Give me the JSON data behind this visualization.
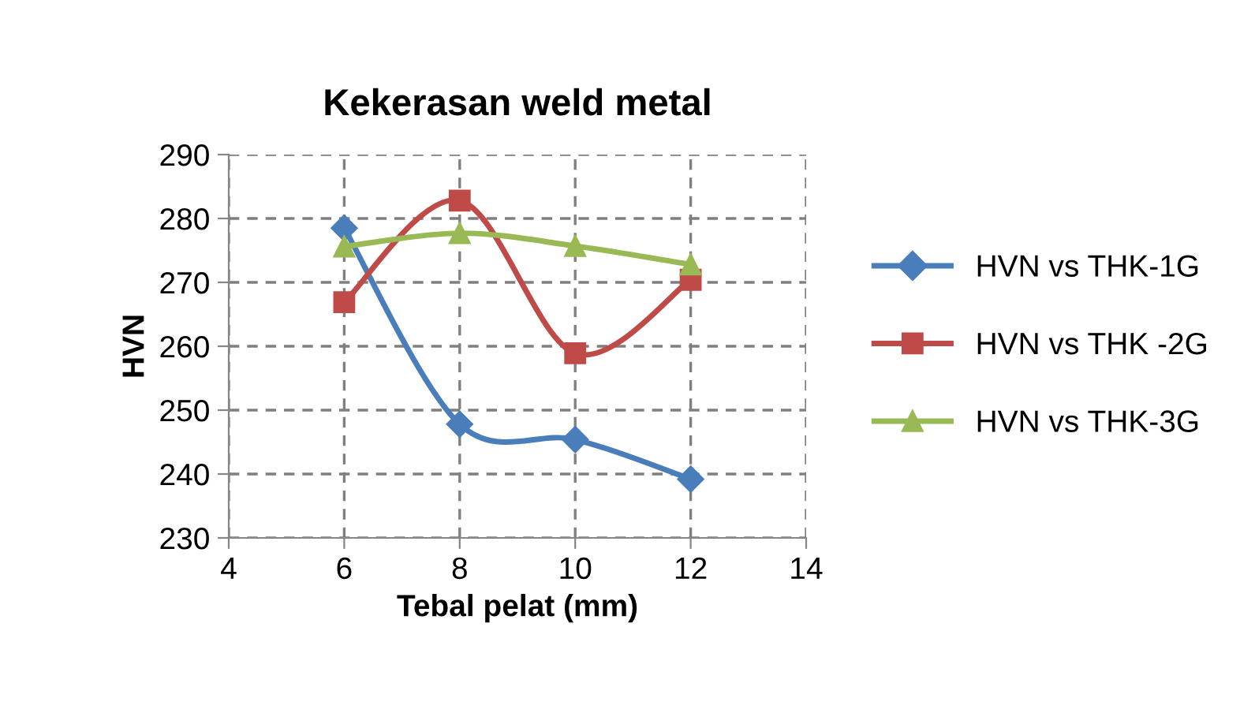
{
  "chart_data": {
    "type": "line",
    "title": "Kekerasan weld metal",
    "xlabel": "Tebal pelat (mm)",
    "ylabel": "HVN",
    "x": [
      6,
      8,
      10,
      12
    ],
    "series": [
      {
        "name": "HVN vs THK-1G",
        "color": "#4a7ebb",
        "marker": "diamond",
        "values": [
          278.5,
          247.8,
          245.4,
          239.2
        ]
      },
      {
        "name": "HVN vs THK -2G",
        "color": "#be4b48",
        "marker": "square",
        "values": [
          266.9,
          282.8,
          258.9,
          270.4
        ]
      },
      {
        "name": "HVN vs THK-3G",
        "color": "#98b954",
        "marker": "triangle",
        "values": [
          275.6,
          277.7,
          275.7,
          272.8
        ]
      }
    ],
    "xlim": [
      4,
      14
    ],
    "xticks": [
      4,
      6,
      8,
      10,
      12,
      14
    ],
    "ylim": [
      230,
      290
    ],
    "yticks": [
      230,
      240,
      250,
      260,
      270,
      280,
      290
    ],
    "grid": true,
    "legend": "right",
    "line_style": "solid"
  }
}
